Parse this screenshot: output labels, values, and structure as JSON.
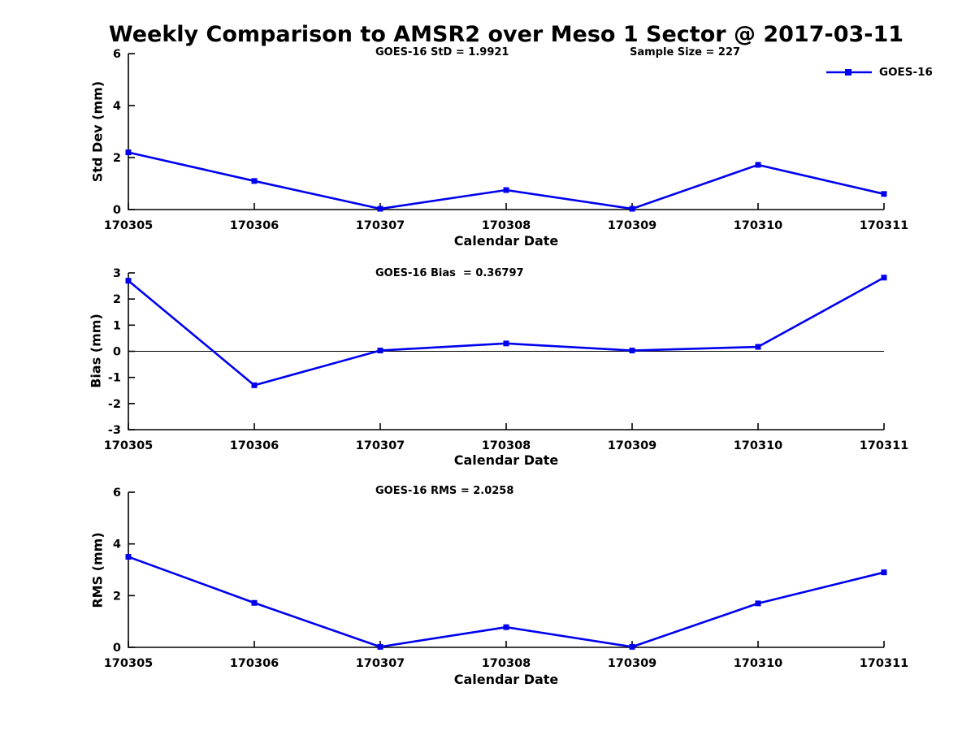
{
  "title": "Weekly Comparison to AMSR2 over Meso 1 Sector @ 2017-03-11",
  "legend": {
    "label": "GOES-16",
    "color": "#0000EE",
    "position": "top-right"
  },
  "chart_data": [
    {
      "type": "line",
      "name": "std-dev",
      "annotation": "GOES-16 StD = 1.9921",
      "annotation2": "Sample Size = 227",
      "ylabel": "Std Dev (mm)",
      "xlabel": "Calendar Date",
      "ylim": [
        0,
        6
      ],
      "yticks": [
        0,
        2,
        4,
        6
      ],
      "grid": false,
      "zero_line": false,
      "categories": [
        "170305",
        "170306",
        "170307",
        "170308",
        "170309",
        "170310",
        "170311"
      ],
      "series": [
        {
          "name": "GOES-16",
          "color": "#0000EE",
          "marker": "square",
          "values": [
            2.2,
            1.1,
            0.03,
            0.75,
            0.03,
            1.72,
            0.6
          ]
        }
      ]
    },
    {
      "type": "line",
      "name": "bias",
      "annotation": "GOES-16 Bias  = 0.36797",
      "ylabel": "Bias (mm)",
      "xlabel": "Calendar Date",
      "ylim": [
        -3,
        3
      ],
      "yticks": [
        -3,
        -2,
        -1,
        0,
        1,
        2,
        3
      ],
      "grid": false,
      "zero_line": true,
      "categories": [
        "170305",
        "170306",
        "170307",
        "170308",
        "170309",
        "170310",
        "170311"
      ],
      "series": [
        {
          "name": "GOES-16",
          "color": "#0000EE",
          "marker": "square",
          "values": [
            2.7,
            -1.3,
            0.03,
            0.3,
            0.03,
            0.17,
            2.82
          ]
        }
      ]
    },
    {
      "type": "line",
      "name": "rms",
      "annotation": "GOES-16 RMS = 2.0258",
      "ylabel": "RMS (mm)",
      "xlabel": "Calendar Date",
      "ylim": [
        0,
        6
      ],
      "yticks": [
        0,
        2,
        4,
        6
      ],
      "grid": false,
      "zero_line": false,
      "categories": [
        "170305",
        "170306",
        "170307",
        "170308",
        "170309",
        "170310",
        "170311"
      ],
      "series": [
        {
          "name": "GOES-16",
          "color": "#0000EE",
          "marker": "square",
          "values": [
            3.5,
            1.72,
            0.02,
            0.78,
            0.02,
            1.7,
            2.9
          ]
        }
      ]
    }
  ]
}
